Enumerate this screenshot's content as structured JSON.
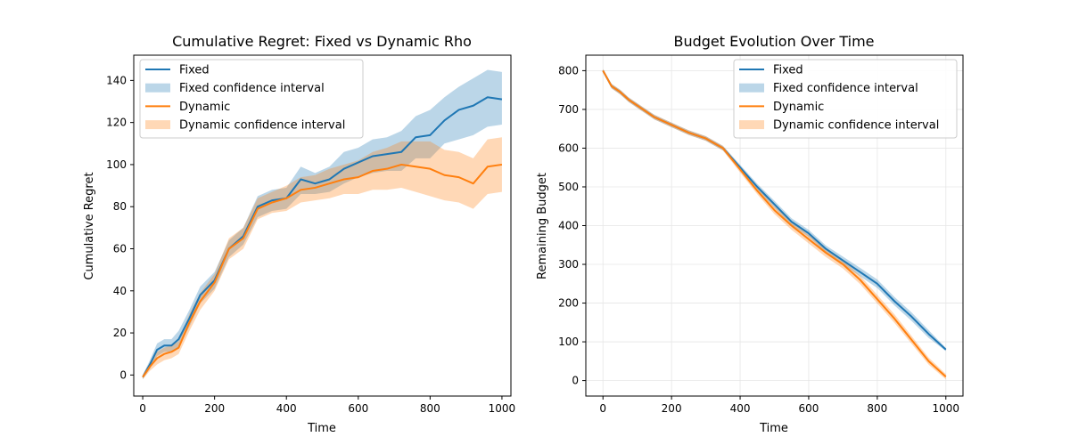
{
  "colors": {
    "fixed": "#1f77b4",
    "dynamic": "#ff7f0e",
    "fixed_band": "#1f77b4",
    "dynamic_band": "#ff7f0e",
    "axis": "#000000",
    "grid": "#e6e6e6"
  },
  "chart_data": [
    {
      "type": "line",
      "title": "Cumulative Regret: Fixed vs Dynamic Rho",
      "xlabel": "Time",
      "ylabel": "Cumulative Regret",
      "xlim": [
        -25,
        1025
      ],
      "ylim": [
        -10,
        152
      ],
      "xticks": [
        0,
        200,
        400,
        600,
        800,
        1000
      ],
      "yticks": [
        0,
        20,
        40,
        60,
        80,
        100,
        120,
        140
      ],
      "grid": false,
      "legend_position": "top-left",
      "legend": [
        "Fixed",
        "Fixed confidence interval",
        "Dynamic",
        "Dynamic confidence interval"
      ],
      "series": [
        {
          "name": "Fixed",
          "band_name": "Fixed confidence interval",
          "x": [
            0,
            20,
            40,
            60,
            80,
            100,
            130,
            160,
            200,
            240,
            280,
            320,
            360,
            400,
            440,
            480,
            520,
            560,
            600,
            640,
            680,
            720,
            760,
            800,
            840,
            880,
            920,
            960,
            1000
          ],
          "y": [
            -1,
            5,
            12,
            14,
            14,
            17,
            27,
            38,
            45,
            60,
            66,
            80,
            83,
            84,
            93,
            91,
            93,
            98,
            101,
            104,
            105,
            106,
            113,
            114,
            121,
            126,
            128,
            132,
            131
          ],
          "lower": [
            -2,
            3,
            9,
            11,
            11,
            13,
            23,
            34,
            41,
            56,
            62,
            75,
            78,
            79,
            86,
            86,
            87,
            91,
            94,
            96,
            97,
            97,
            103,
            103,
            110,
            112,
            114,
            118,
            119
          ],
          "upper": [
            0,
            7,
            15,
            17,
            17,
            21,
            31,
            42,
            49,
            64,
            70,
            85,
            88,
            89,
            99,
            96,
            99,
            106,
            108,
            112,
            113,
            116,
            123,
            126,
            132,
            137,
            141,
            145,
            144
          ]
        },
        {
          "name": "Dynamic",
          "band_name": "Dynamic confidence interval",
          "x": [
            0,
            20,
            40,
            60,
            80,
            100,
            130,
            160,
            200,
            240,
            280,
            320,
            360,
            400,
            440,
            480,
            520,
            560,
            600,
            640,
            680,
            720,
            760,
            800,
            840,
            880,
            920,
            960,
            1000
          ],
          "y": [
            -1,
            4,
            8,
            10,
            11,
            13,
            25,
            35,
            44,
            60,
            65,
            79,
            82,
            84,
            88,
            89,
            91,
            93,
            94,
            97,
            98,
            100,
            99,
            98,
            95,
            94,
            91,
            99,
            100
          ],
          "lower": [
            -2,
            2,
            5,
            7,
            8,
            10,
            21,
            31,
            40,
            55,
            60,
            74,
            77,
            78,
            82,
            83,
            84,
            86,
            86,
            88,
            88,
            89,
            87,
            85,
            83,
            82,
            79,
            86,
            87
          ],
          "upper": [
            0,
            6,
            11,
            13,
            14,
            16,
            29,
            39,
            48,
            65,
            70,
            84,
            87,
            90,
            94,
            95,
            98,
            100,
            102,
            106,
            108,
            111,
            111,
            111,
            107,
            106,
            103,
            112,
            113
          ]
        }
      ]
    },
    {
      "type": "line",
      "title": "Budget Evolution Over Time",
      "xlabel": "Time",
      "ylabel": "Remaining Budget",
      "xlim": [
        -50,
        1050
      ],
      "ylim": [
        -40,
        840
      ],
      "xticks": [
        0,
        200,
        400,
        600,
        800,
        1000
      ],
      "yticks": [
        0,
        100,
        200,
        300,
        400,
        500,
        600,
        700,
        800
      ],
      "grid": true,
      "legend_position": "top-right",
      "legend": [
        "Fixed",
        "Fixed confidence interval",
        "Dynamic",
        "Dynamic confidence interval"
      ],
      "series": [
        {
          "name": "Fixed",
          "band_name": "Fixed confidence interval",
          "x": [
            0,
            25,
            50,
            75,
            100,
            150,
            200,
            250,
            300,
            350,
            400,
            450,
            500,
            550,
            600,
            650,
            700,
            750,
            800,
            850,
            900,
            950,
            1000
          ],
          "y": [
            800,
            760,
            745,
            725,
            710,
            680,
            660,
            640,
            625,
            600,
            550,
            500,
            455,
            410,
            380,
            340,
            310,
            280,
            250,
            205,
            165,
            120,
            80
          ],
          "lower": [
            796,
            754,
            739,
            719,
            704,
            674,
            654,
            634,
            619,
            594,
            543,
            492,
            446,
            401,
            371,
            331,
            300,
            269,
            239,
            194,
            154,
            110,
            76
          ],
          "upper": [
            804,
            766,
            751,
            731,
            716,
            686,
            666,
            646,
            631,
            606,
            557,
            508,
            464,
            419,
            389,
            349,
            320,
            291,
            261,
            216,
            176,
            130,
            84
          ]
        },
        {
          "name": "Dynamic",
          "band_name": "Dynamic confidence interval",
          "x": [
            0,
            25,
            50,
            75,
            100,
            150,
            200,
            250,
            300,
            350,
            400,
            450,
            500,
            550,
            600,
            650,
            700,
            750,
            800,
            850,
            900,
            950,
            1000
          ],
          "y": [
            800,
            760,
            745,
            725,
            710,
            680,
            660,
            640,
            625,
            600,
            545,
            490,
            440,
            400,
            365,
            330,
            300,
            260,
            210,
            160,
            105,
            50,
            10
          ],
          "lower": [
            796,
            754,
            739,
            719,
            704,
            674,
            654,
            634,
            619,
            594,
            537,
            481,
            430,
            389,
            354,
            319,
            289,
            249,
            199,
            149,
            95,
            41,
            3
          ],
          "upper": [
            804,
            766,
            751,
            731,
            716,
            686,
            666,
            646,
            631,
            606,
            553,
            499,
            450,
            411,
            376,
            341,
            311,
            271,
            221,
            171,
            115,
            59,
            17
          ]
        }
      ]
    }
  ]
}
